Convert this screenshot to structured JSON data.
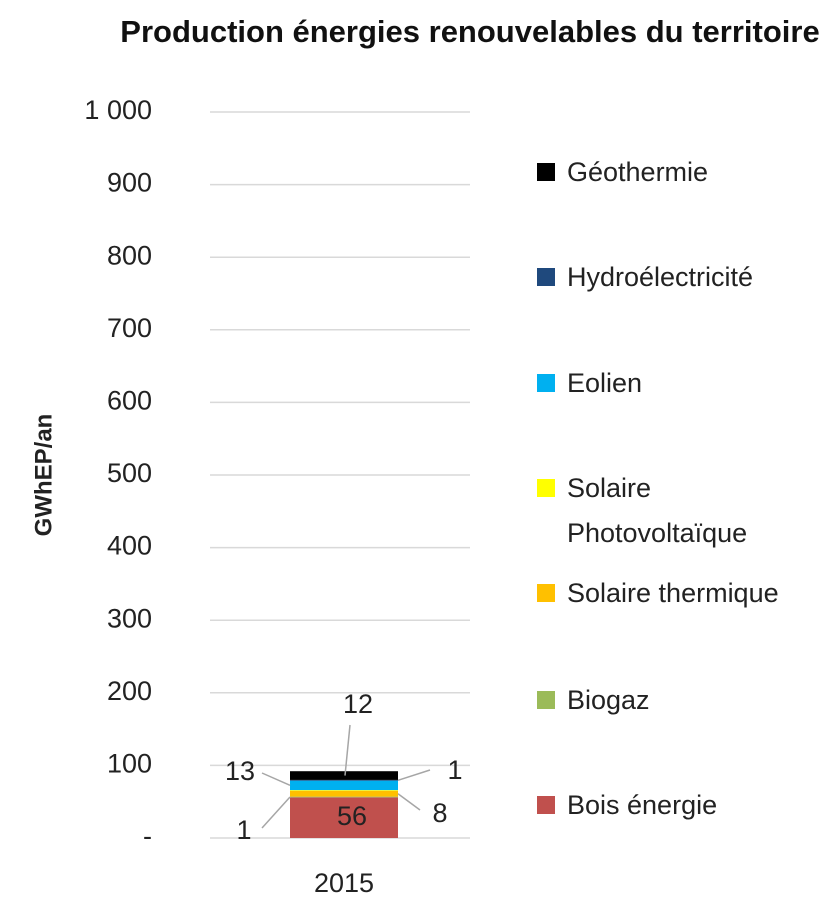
{
  "chart_data": {
    "type": "stacked_bar",
    "title": "Production énergies renouvelables du territoire",
    "y_label": "GWhEP/an",
    "categories": [
      "2015"
    ],
    "series": [
      {
        "name": "Bois énergie",
        "color": "#c0504d",
        "values": [
          56
        ]
      },
      {
        "name": "Biogaz",
        "color": "#9bbb59",
        "values": [
          1
        ]
      },
      {
        "name": "Solaire thermique",
        "color": "#ffc000",
        "values": [
          8
        ]
      },
      {
        "name": "Solaire Photovoltaïque",
        "color": "#ffff00",
        "values": [
          1
        ]
      },
      {
        "name": "Eolien",
        "color": "#00b0f0",
        "values": [
          13
        ]
      },
      {
        "name": "Hydroélectricité",
        "color": "#1f497d",
        "values": [
          1
        ]
      },
      {
        "name": "Géothermie",
        "color": "#000000",
        "values": [
          12
        ]
      }
    ],
    "ylim": [
      0,
      1000
    ],
    "yticks": [
      {
        "value": 0,
        "label": "-"
      },
      100,
      200,
      300,
      400,
      500,
      600,
      700,
      800,
      900,
      {
        "value": 1000,
        "label": "1 000"
      }
    ],
    "grid": true,
    "legend": "right"
  }
}
